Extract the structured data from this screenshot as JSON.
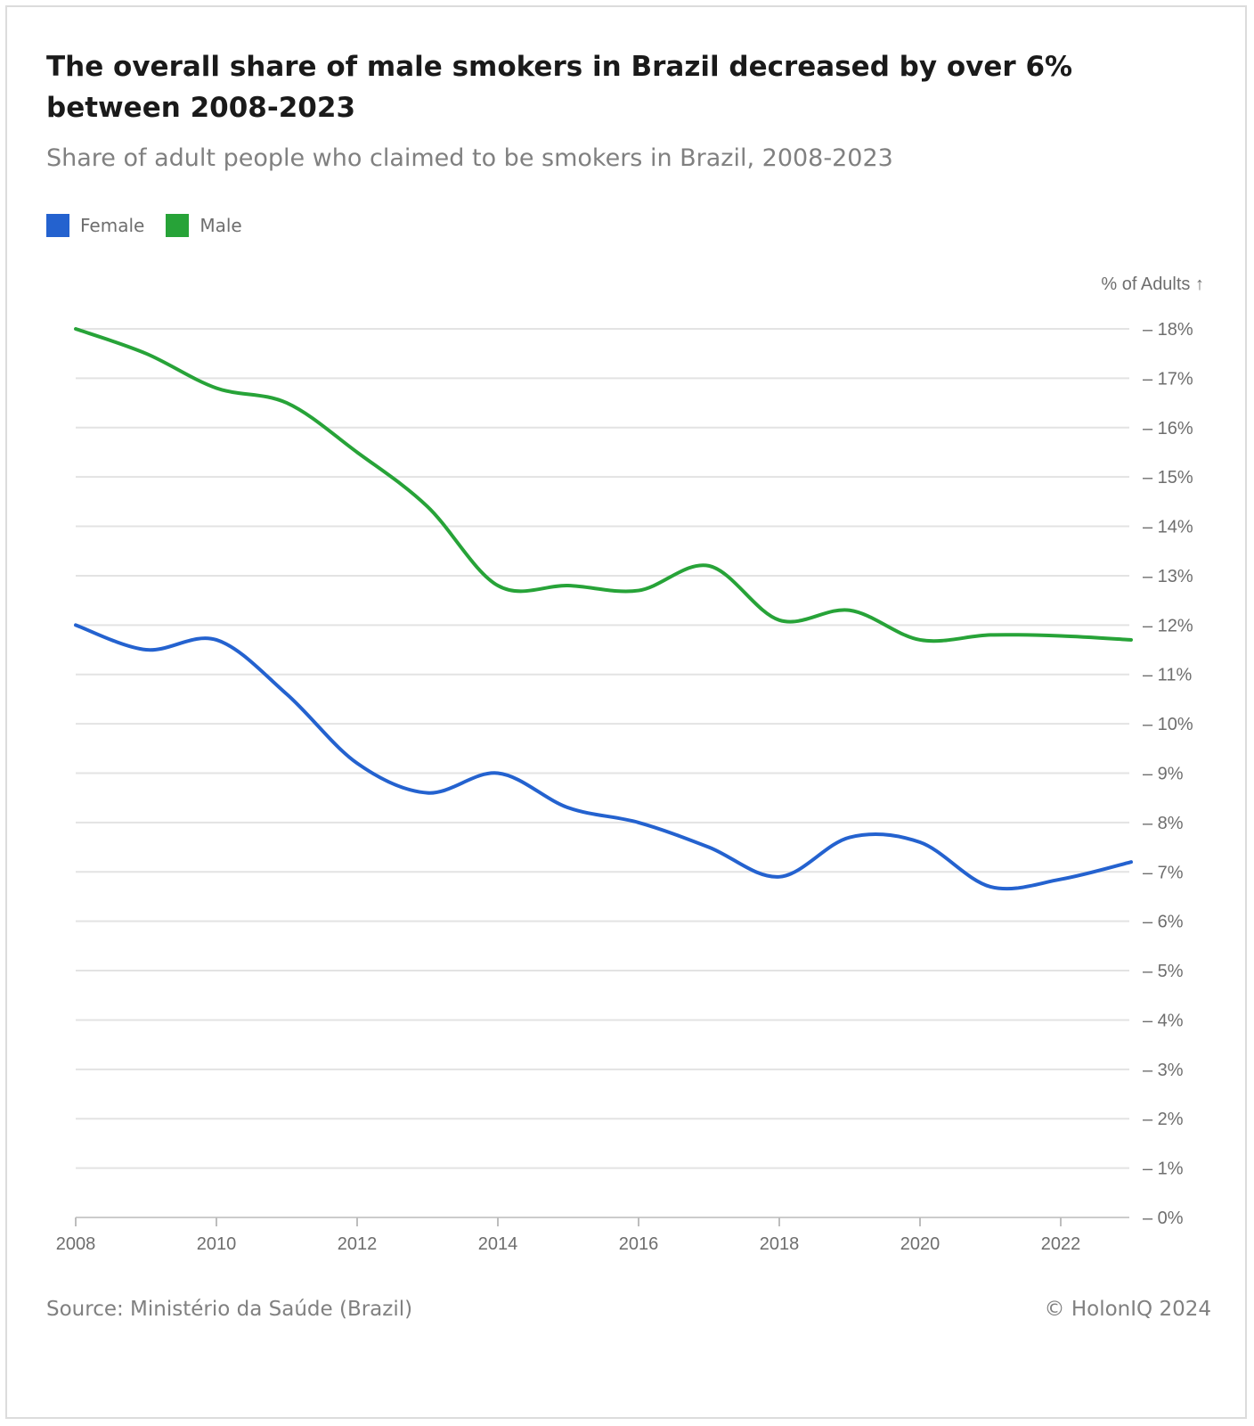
{
  "header": {
    "title": "The overall share of male smokers in Brazil decreased by over 6% between 2008-2023",
    "subtitle": "Share of adult people who claimed to be smokers in Brazil, 2008-2023"
  },
  "legend": [
    {
      "label": "Female",
      "color": "#2462cf"
    },
    {
      "label": "Male",
      "color": "#27a338"
    }
  ],
  "footer": {
    "source": "Source: Ministério da Saúde (Brazil)",
    "credit": "© HolonIQ 2024"
  },
  "chart_data": {
    "type": "line",
    "title": "The overall share of male smokers in Brazil decreased by over 6% between 2008-2023",
    "subtitle": "Share of adult people who claimed to be smokers in Brazil, 2008-2023",
    "xlabel": "",
    "ylabel": "% of Adults ↑",
    "x": [
      2008,
      2009,
      2010,
      2011,
      2012,
      2013,
      2014,
      2015,
      2016,
      2017,
      2018,
      2019,
      2020,
      2021,
      2022,
      2023
    ],
    "xticks": [
      "2008",
      "2010",
      "2012",
      "2014",
      "2016",
      "2018",
      "2020",
      "2022"
    ],
    "ylim": [
      0,
      18
    ],
    "yticks": [
      "0%",
      "1%",
      "2%",
      "3%",
      "4%",
      "5%",
      "6%",
      "7%",
      "8%",
      "9%",
      "10%",
      "11%",
      "12%",
      "13%",
      "14%",
      "15%",
      "16%",
      "17%",
      "18%"
    ],
    "grid": true,
    "legend_position": "top-left",
    "series": [
      {
        "name": "Female",
        "color": "#2462cf",
        "values": [
          12.0,
          11.5,
          11.7,
          10.6,
          9.2,
          8.6,
          9.0,
          8.3,
          8.0,
          7.5,
          6.9,
          7.7,
          7.6,
          6.7,
          6.85,
          7.2
        ]
      },
      {
        "name": "Male",
        "color": "#27a338",
        "values": [
          18.0,
          17.5,
          16.8,
          16.5,
          15.5,
          14.4,
          12.8,
          12.8,
          12.7,
          13.2,
          12.1,
          12.3,
          11.7,
          11.8,
          11.78,
          11.7
        ]
      }
    ]
  }
}
